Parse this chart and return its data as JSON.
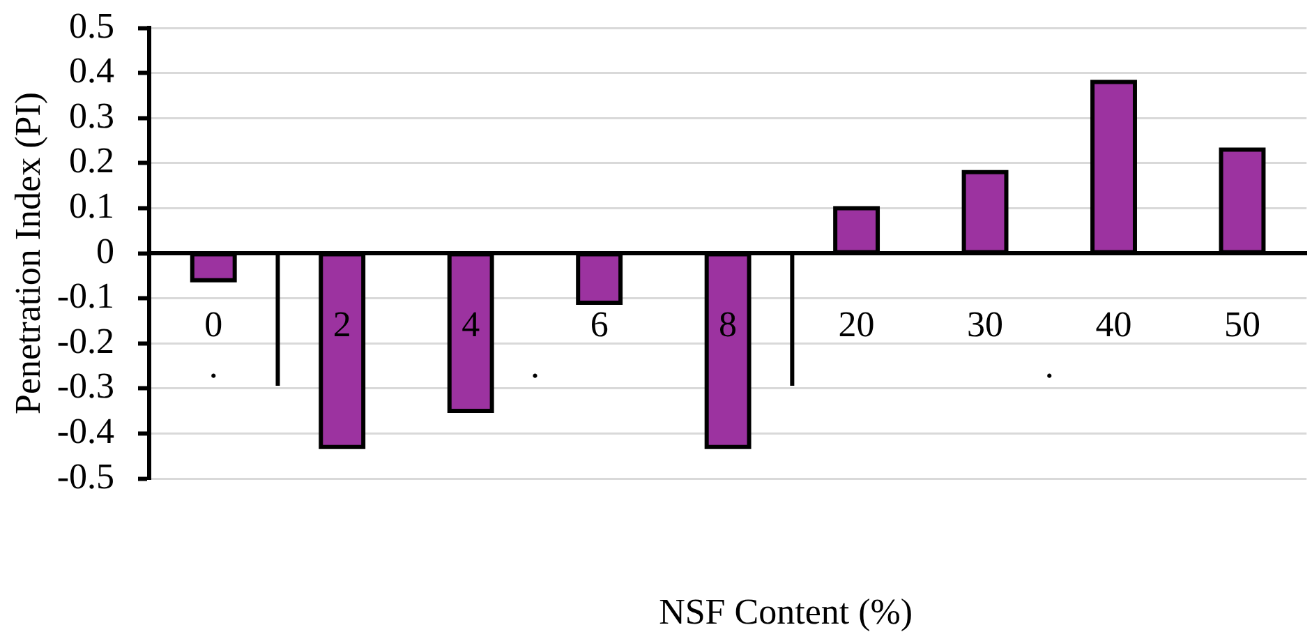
{
  "chart_data": {
    "type": "bar",
    "xlabel": "NSF Content (%)",
    "ylabel": "Penetration Index (PI)",
    "categories": [
      "0",
      "2",
      "4",
      "6",
      "8",
      "20",
      "30",
      "40",
      "50"
    ],
    "values": [
      -0.06,
      -0.43,
      -0.35,
      -0.11,
      -0.43,
      0.1,
      0.18,
      0.38,
      0.23
    ],
    "color": "#9c33a0",
    "ylim": [
      -0.5,
      0.5
    ],
    "yticks": [
      -0.5,
      -0.4,
      -0.3,
      -0.2,
      -0.1,
      0,
      0.1,
      0.2,
      0.3,
      0.4,
      0.5
    ],
    "grid": "y",
    "legend": false,
    "annotations": [
      ".",
      ".",
      "."
    ]
  }
}
